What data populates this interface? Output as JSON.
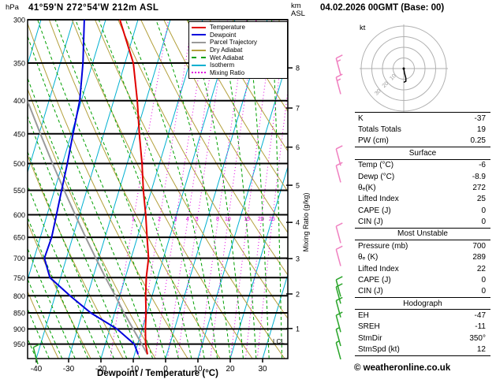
{
  "header": {
    "station": "41°59'N 272°54'W 212m ASL",
    "datetime": "04.02.2026 00GMT (Base: 00)"
  },
  "axes": {
    "pressure_unit": "hPa",
    "alt_km": "km",
    "alt_asl": "ASL",
    "x_title": "Dewpoint / Temperature (°C)",
    "mixing_ratio_label": "Mixing Ratio (g/kg)",
    "lcl_label": "LCL"
  },
  "legend": {
    "items": [
      {
        "label": "Temperature",
        "color": "#e00000",
        "style": "solid"
      },
      {
        "label": "Dewpoint",
        "color": "#0000dd",
        "style": "solid"
      },
      {
        "label": "Parcel Trajectory",
        "color": "#9a9a9a",
        "style": "solid"
      },
      {
        "label": "Dry Adiabat",
        "color": "#b3a03c",
        "style": "solid"
      },
      {
        "label": "Wet Adiabat",
        "color": "#00a000",
        "style": "dashed"
      },
      {
        "label": "Isotherm",
        "color": "#00b0d0",
        "style": "solid"
      },
      {
        "label": "Mixing Ratio",
        "color": "#e000e0",
        "style": "dotted"
      }
    ]
  },
  "chart_data": {
    "type": "skewt",
    "pressure_axis_hpa": [
      300,
      350,
      400,
      450,
      500,
      550,
      600,
      650,
      700,
      750,
      800,
      850,
      900,
      950
    ],
    "pressure_range_hpa": [
      300,
      1000
    ],
    "temp_ticks_c": [
      -40,
      -30,
      -20,
      -10,
      0,
      10,
      20,
      30
    ],
    "km_ticks": [
      1,
      2,
      3,
      4,
      5,
      6,
      7,
      8
    ],
    "mixing_ratio_lines_gkg": [
      1,
      2,
      3,
      4,
      5,
      8,
      10,
      15,
      20,
      25
    ],
    "isotherm_step_c": 10,
    "dry_adiabat_theta_k": {
      "from": 240,
      "to": 450,
      "step": 10
    },
    "wet_adiabat_t0_c": {
      "from": -48,
      "to": 36,
      "step": 4
    },
    "lcl_hpa": 940,
    "temperature_profile": {
      "pressure_hpa": [
        985,
        950,
        900,
        850,
        800,
        750,
        700,
        650,
        600,
        550,
        500,
        450,
        400,
        350,
        300
      ],
      "temp_c": [
        -6,
        -7.5,
        -9,
        -10.3,
        -12,
        -13.5,
        -14.6,
        -17,
        -19.5,
        -22.5,
        -25.4,
        -29,
        -32.7,
        -37.4,
        -45.6
      ]
    },
    "dewpoint_profile": {
      "pressure_hpa": [
        985,
        950,
        900,
        850,
        800,
        750,
        700,
        650,
        600,
        550,
        500,
        450,
        400,
        350,
        300
      ],
      "temp_c": [
        -8.9,
        -11,
        -17.8,
        -27.4,
        -35.4,
        -43.3,
        -46.8,
        -46.5,
        -47.1,
        -47.8,
        -48.5,
        -49.5,
        -50.5,
        -53,
        -56.6
      ]
    },
    "parcel_profile": {
      "pressure_hpa": [
        985,
        950,
        900,
        850,
        800,
        750,
        700,
        650,
        600,
        550,
        500,
        450,
        400,
        350,
        300
      ],
      "temp_c": [
        -6,
        -8.7,
        -12.8,
        -17.1,
        -21.4,
        -26.1,
        -30.9,
        -36,
        -41.3,
        -47,
        -53.1,
        -59.6,
        -66.7,
        -74.4,
        -83
      ]
    },
    "wind_barbs": [
      {
        "p": 355,
        "spd": 15,
        "color": "#f080c0"
      },
      {
        "p": 380,
        "spd": 15,
        "color": "#f080c0"
      },
      {
        "p": 490,
        "spd": 10,
        "color": "#f080c0"
      },
      {
        "p": 520,
        "spd": 10,
        "color": "#f080c0"
      },
      {
        "p": 645,
        "spd": 10,
        "color": "#f080c0"
      },
      {
        "p": 700,
        "spd": 10,
        "color": "#f080c0"
      },
      {
        "p": 780,
        "spd": 10,
        "color": "#28a428"
      },
      {
        "p": 800,
        "spd": 10,
        "color": "#28a428"
      },
      {
        "p": 840,
        "spd": 10,
        "color": "#28a428"
      },
      {
        "p": 885,
        "spd": 10,
        "color": "#28a428"
      },
      {
        "p": 930,
        "spd": 5,
        "color": "#28a428"
      },
      {
        "p": 975,
        "spd": 5,
        "color": "#28a428"
      }
    ],
    "surface_barb": {
      "spd": 10,
      "color": "#28a428"
    }
  },
  "hodograph": {
    "unit": "kt",
    "ring_step_kt": 10,
    "rings_kt": [
      10,
      20,
      30,
      40
    ],
    "ring_labels": [
      10,
      20,
      30
    ],
    "trace_uv_kt": [
      [
        0,
        0
      ],
      [
        0.7,
        -4
      ],
      [
        2,
        -9
      ],
      [
        2,
        -12
      ],
      [
        0,
        -13
      ]
    ]
  },
  "indices": {
    "sections": [
      {
        "header": null,
        "rows": [
          [
            "K",
            "-37"
          ],
          [
            "Totals Totals",
            "19"
          ],
          [
            "PW (cm)",
            "0.25"
          ]
        ]
      },
      {
        "header": "Surface",
        "rows": [
          [
            "Temp (°C)",
            "-6"
          ],
          [
            "Dewp (°C)",
            "-8.9"
          ],
          [
            "θₑ(K)",
            "272"
          ],
          [
            "Lifted Index",
            "25"
          ],
          [
            "CAPE (J)",
            "0"
          ],
          [
            "CIN (J)",
            "0"
          ]
        ]
      },
      {
        "header": "Most Unstable",
        "rows": [
          [
            "Pressure (mb)",
            "700"
          ],
          [
            "θₑ (K)",
            "289"
          ],
          [
            "Lifted Index",
            "22"
          ],
          [
            "CAPE (J)",
            "0"
          ],
          [
            "CIN (J)",
            "0"
          ]
        ]
      },
      {
        "header": "Hodograph",
        "rows": [
          [
            "EH",
            "-47"
          ],
          [
            "SREH",
            "-11"
          ],
          [
            "StmDir",
            "350°"
          ],
          [
            "StmSpd (kt)",
            "12"
          ]
        ]
      }
    ]
  },
  "footer": {
    "copyright": "© weatheronline.co.uk"
  }
}
